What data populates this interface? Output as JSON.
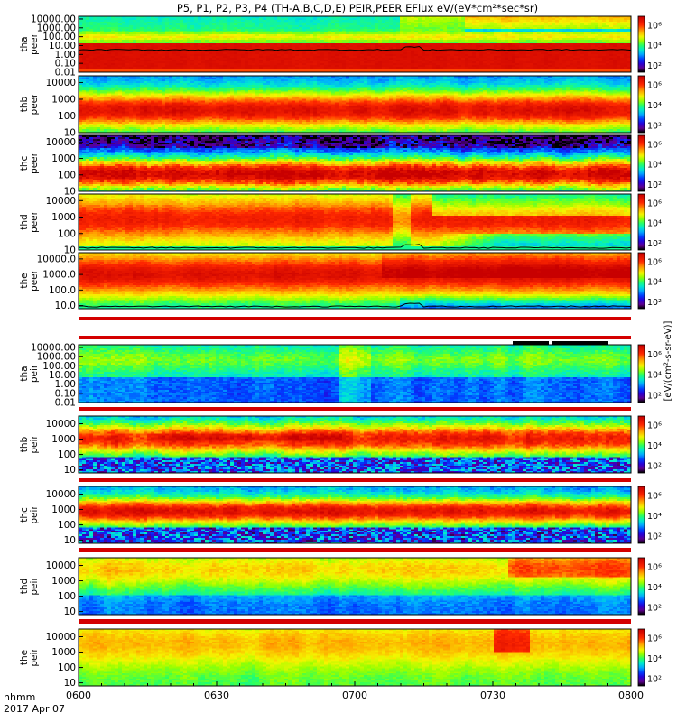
{
  "chart_data": {
    "type": "heatmap",
    "title": "P5, P1, P2, P3, P4 (TH-A,B,C,D,E) PEIR,PEER EFlux eV/(eV*cm²*sec*sr)",
    "x_ticks": [
      "0600",
      "0630",
      "0700",
      "0730",
      "0800"
    ],
    "x_tick_minutes": [
      0,
      30,
      60,
      90,
      120
    ],
    "x_range_minutes": [
      0,
      120
    ],
    "x_start_label": "hhmm",
    "date_label": "2017 Apr 07",
    "colorbar_ticks": [
      "10²",
      "10⁴",
      "10⁶"
    ],
    "colorbar_exponents": [
      2,
      4,
      6
    ],
    "colorbar_range_exponents": [
      1.3,
      6.9
    ],
    "colorbar_label": "[eV/(cm²-s-sr-eV)]",
    "panels": [
      {
        "probe": "tha",
        "species": "peer",
        "yticks": [
          "10000.00",
          "1000.00",
          "100.00",
          "10.00",
          "1.00",
          "0.10",
          "0.01"
        ],
        "ylog": [
          -2,
          4.3
        ],
        "style": "tha_peer"
      },
      {
        "probe": "thb",
        "species": "peer",
        "yticks": [
          "10000",
          "1000",
          "100",
          "10"
        ],
        "ylog": [
          1,
          4.4
        ],
        "style": "peer_b"
      },
      {
        "probe": "thc",
        "species": "peer",
        "yticks": [
          "10000",
          "1000",
          "100",
          "10"
        ],
        "ylog": [
          1,
          4.4
        ],
        "style": "peer_c"
      },
      {
        "probe": "thd",
        "species": "peer",
        "yticks": [
          "10000",
          "1000",
          "100",
          "10"
        ],
        "ylog": [
          1,
          4.4
        ],
        "style": "peer_d"
      },
      {
        "probe": "the",
        "species": "peer",
        "yticks": [
          "10000.0",
          "1000.0",
          "100.0",
          "10.0"
        ],
        "ylog": [
          0.8,
          4.4
        ],
        "style": "peer_e"
      },
      {
        "probe": "tha",
        "species": "peir",
        "yticks": [
          "10000.00",
          "1000.00",
          "100.00",
          "10.00",
          "1.00",
          "0.10",
          "0.01"
        ],
        "ylog": [
          -2,
          4.3
        ],
        "style": "tha_peir"
      },
      {
        "probe": "thb",
        "species": "peir",
        "yticks": [
          "10000",
          "1000",
          "100",
          "10"
        ],
        "ylog": [
          0.8,
          4.5
        ],
        "style": "peir_b"
      },
      {
        "probe": "thc",
        "species": "peir",
        "yticks": [
          "10000",
          "1000",
          "100",
          "10"
        ],
        "ylog": [
          0.8,
          4.5
        ],
        "style": "peir_c"
      },
      {
        "probe": "thd",
        "species": "peir",
        "yticks": [
          "10000",
          "1000",
          "100",
          "10"
        ],
        "ylog": [
          0.8,
          4.5
        ],
        "style": "peir_d"
      },
      {
        "probe": "the",
        "species": "peir",
        "yticks": [
          "10000",
          "1000",
          "100",
          "10"
        ],
        "ylog": [
          0.8,
          4.5
        ],
        "style": "peir_e"
      }
    ]
  }
}
